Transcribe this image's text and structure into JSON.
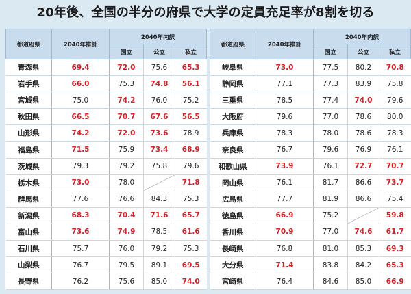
{
  "title": "20年後、全国の半分の府県で大学の定員充足率が8割を切る",
  "colors": {
    "highlight": "#d51f26",
    "header_bg": "#c9dced",
    "page_bg": "#dbe9f3"
  },
  "headers": {
    "pref": "都道府県",
    "proj": "2040年推計",
    "breakdown": "2040年内訳",
    "national": "国立",
    "public": "公立",
    "private": "私立"
  },
  "left_rows": [
    {
      "pref": "青森県",
      "proj": "69.4",
      "nat": "72.0",
      "pub": "75.6",
      "pri": "65.3"
    },
    {
      "pref": "岩手県",
      "proj": "66.0",
      "nat": "75.3",
      "pub": "74.8",
      "pri": "56.1"
    },
    {
      "pref": "宮城県",
      "proj": "75.0",
      "nat": "74.2",
      "pub": "76.0",
      "pri": "75.2"
    },
    {
      "pref": "秋田県",
      "proj": "66.5",
      "nat": "70.7",
      "pub": "67.6",
      "pri": "56.5"
    },
    {
      "pref": "山形県",
      "proj": "74.2",
      "nat": "72.0",
      "pub": "73.6",
      "pri": "78.9"
    },
    {
      "pref": "福島県",
      "proj": "71.5",
      "nat": "75.9",
      "pub": "73.4",
      "pri": "68.9"
    },
    {
      "pref": "茨城県",
      "proj": "79.3",
      "nat": "79.2",
      "pub": "75.8",
      "pri": "79.6"
    },
    {
      "pref": "栃木県",
      "proj": "73.0",
      "nat": "78.0",
      "pub": "",
      "pri": "71.8"
    },
    {
      "pref": "群馬県",
      "proj": "77.6",
      "nat": "76.6",
      "pub": "84.3",
      "pri": "75.3"
    },
    {
      "pref": "新潟県",
      "proj": "68.3",
      "nat": "70.4",
      "pub": "71.6",
      "pri": "65.7"
    },
    {
      "pref": "富山県",
      "proj": "73.6",
      "nat": "74.9",
      "pub": "78.5",
      "pri": "61.6"
    },
    {
      "pref": "石川県",
      "proj": "75.7",
      "nat": "76.0",
      "pub": "79.2",
      "pri": "75.3"
    },
    {
      "pref": "山梨県",
      "proj": "76.7",
      "nat": "79.5",
      "pub": "89.1",
      "pri": "69.5"
    },
    {
      "pref": "長野県",
      "proj": "76.2",
      "nat": "75.6",
      "pub": "85.0",
      "pri": "74.0"
    }
  ],
  "right_rows": [
    {
      "pref": "岐阜県",
      "proj": "73.0",
      "nat": "77.5",
      "pub": "80.2",
      "pri": "70.8"
    },
    {
      "pref": "静岡県",
      "proj": "77.1",
      "nat": "77.3",
      "pub": "83.9",
      "pri": "75.8"
    },
    {
      "pref": "三重県",
      "proj": "78.5",
      "nat": "77.4",
      "pub": "74.0",
      "pri": "79.6"
    },
    {
      "pref": "大阪府",
      "proj": "79.6",
      "nat": "77.0",
      "pub": "78.6",
      "pri": "80.0"
    },
    {
      "pref": "兵庫県",
      "proj": "78.3",
      "nat": "78.0",
      "pub": "78.6",
      "pri": "78.3"
    },
    {
      "pref": "奈良県",
      "proj": "76.7",
      "nat": "79.6",
      "pub": "76.9",
      "pri": "76.1"
    },
    {
      "pref": "和歌山県",
      "proj": "73.9",
      "nat": "76.1",
      "pub": "72.7",
      "pri": "70.7"
    },
    {
      "pref": "岡山県",
      "proj": "76.1",
      "nat": "81.7",
      "pub": "86.6",
      "pri": "73.7"
    },
    {
      "pref": "広島県",
      "proj": "77.7",
      "nat": "81.9",
      "pub": "86.6",
      "pri": "75.4"
    },
    {
      "pref": "徳島県",
      "proj": "66.9",
      "nat": "75.2",
      "pub": "",
      "pri": "59.8"
    },
    {
      "pref": "香川県",
      "proj": "70.9",
      "nat": "77.0",
      "pub": "74.6",
      "pri": "61.7"
    },
    {
      "pref": "長崎県",
      "proj": "76.8",
      "nat": "81.0",
      "pub": "85.3",
      "pri": "69.3"
    },
    {
      "pref": "大分県",
      "proj": "71.4",
      "nat": "83.8",
      "pub": "84.2",
      "pri": "65.3"
    },
    {
      "pref": "宮崎県",
      "proj": "76.4",
      "nat": "84.6",
      "pub": "85.0",
      "pri": "66.9"
    }
  ]
}
